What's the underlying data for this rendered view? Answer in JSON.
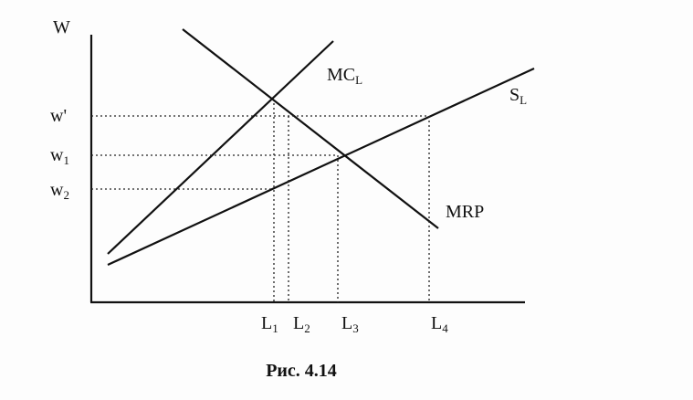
{
  "axes": {
    "y_label": "W",
    "ticks": [
      {
        "main": "w'"
      },
      {
        "main": "w",
        "sub": "1"
      },
      {
        "main": "w",
        "sub": "2"
      }
    ]
  },
  "curves": [
    {
      "main": "MC",
      "sub": "L"
    },
    {
      "main": "S",
      "sub": "L"
    },
    {
      "main": "MRP"
    }
  ],
  "x_ticks": [
    {
      "main": "L",
      "sub": "1"
    },
    {
      "main": "L",
      "sub": "2"
    },
    {
      "main": "L",
      "sub": "3"
    },
    {
      "main": "L",
      "sub": "4"
    }
  ],
  "caption": "Рис. 4.14"
}
